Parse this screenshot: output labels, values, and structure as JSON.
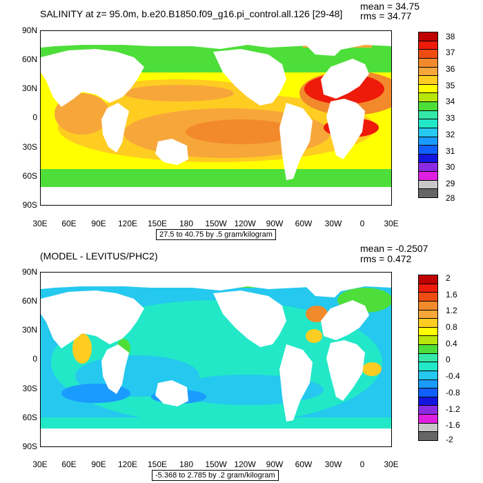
{
  "colors": {
    "ramp": [
      "#666666",
      "#c8c8c8",
      "#e020e0",
      "#8a2be2",
      "#1515e0",
      "#1060ff",
      "#1a9bff",
      "#25c8ee",
      "#22e8c8",
      "#35e8a8",
      "#4ede3a",
      "#b8e60a",
      "#ffff00",
      "#ffcc22",
      "#f7a63a",
      "#f28a2c",
      "#ee4c10",
      "#ee1a0a",
      "#bf0000"
    ],
    "land": "#ffffff"
  },
  "top": {
    "title": "SALINITY at z=  95.0m, b.e20.B1850.f09_g16.pi_control.all.126 [29-48]",
    "mean": "mean = 34.75",
    "rms": "rms = 34.77",
    "range": "27.5 to 40.75 by .5 gram/kilogram",
    "colorbar": {
      "labels": [
        "38",
        "37",
        "36",
        "35",
        "34",
        "33",
        "32",
        "31",
        "30",
        "29",
        "28"
      ]
    }
  },
  "bottom": {
    "title": "(MODEL - LEVITUS/PHC2)",
    "mean": "mean = -0.2507",
    "rms": "rms = 0.472",
    "range": "-5.368 to 2.785 by .2 gram/kilogram",
    "colorbar": {
      "labels": [
        "2",
        "1.6",
        "1.2",
        "0.8",
        "0.4",
        "0",
        "-0.4",
        "-0.8",
        "-1.2",
        "-1.6",
        "-2"
      ]
    }
  },
  "axes": {
    "y_labels": [
      "90N",
      "60N",
      "30N",
      "0",
      "30S",
      "60S",
      "90S"
    ],
    "x_labels": [
      "30E",
      "60E",
      "90E",
      "120E",
      "150E",
      "180",
      "150W",
      "120W",
      "90W",
      "60W",
      "30W",
      "0",
      "30E"
    ]
  }
}
